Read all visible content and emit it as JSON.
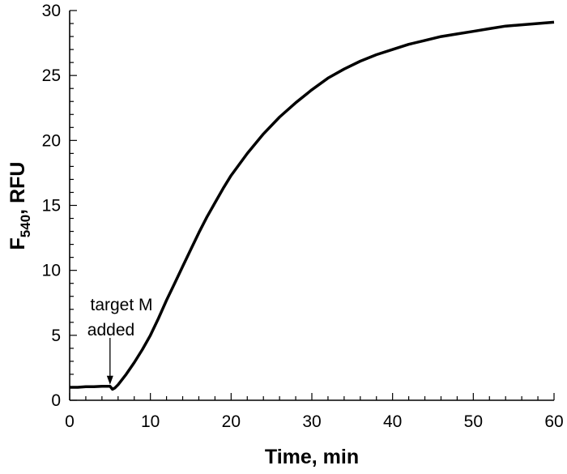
{
  "chart_data": {
    "type": "line",
    "title": "",
    "xlabel": "Time, min",
    "ylabel_main": "F",
    "ylabel_sub": "540",
    "ylabel_rest": ", RFU",
    "xlim": [
      0,
      60
    ],
    "ylim": [
      0,
      30
    ],
    "xticks": [
      0,
      10,
      20,
      30,
      40,
      50,
      60
    ],
    "yticks": [
      0,
      5,
      10,
      15,
      20,
      25,
      30
    ],
    "grid": false,
    "series": [
      {
        "color": "#000000",
        "x": [
          0,
          1,
          2,
          3,
          4,
          5,
          5.3,
          5.6,
          6,
          7,
          8,
          9,
          10,
          11,
          12,
          13,
          14,
          15,
          16,
          17,
          18,
          19,
          20,
          22,
          24,
          26,
          28,
          30,
          32,
          34,
          36,
          38,
          40,
          42,
          44,
          46,
          48,
          50,
          52,
          54,
          56,
          58,
          60
        ],
        "y": [
          1.0,
          1.0,
          1.05,
          1.05,
          1.08,
          1.08,
          0.85,
          0.95,
          1.2,
          2.0,
          2.9,
          3.9,
          5.0,
          6.3,
          7.7,
          9.0,
          10.3,
          11.6,
          12.9,
          14.1,
          15.2,
          16.3,
          17.3,
          19.0,
          20.5,
          21.8,
          22.9,
          23.9,
          24.8,
          25.5,
          26.1,
          26.6,
          27.0,
          27.4,
          27.7,
          28.0,
          28.2,
          28.4,
          28.6,
          28.8,
          28.9,
          29.0,
          29.1
        ]
      }
    ],
    "annotation": {
      "line1": "target M",
      "line2": "added",
      "arrow_x": 5,
      "arrow_y_start": 4.8,
      "arrow_y_end": 1.2
    }
  }
}
